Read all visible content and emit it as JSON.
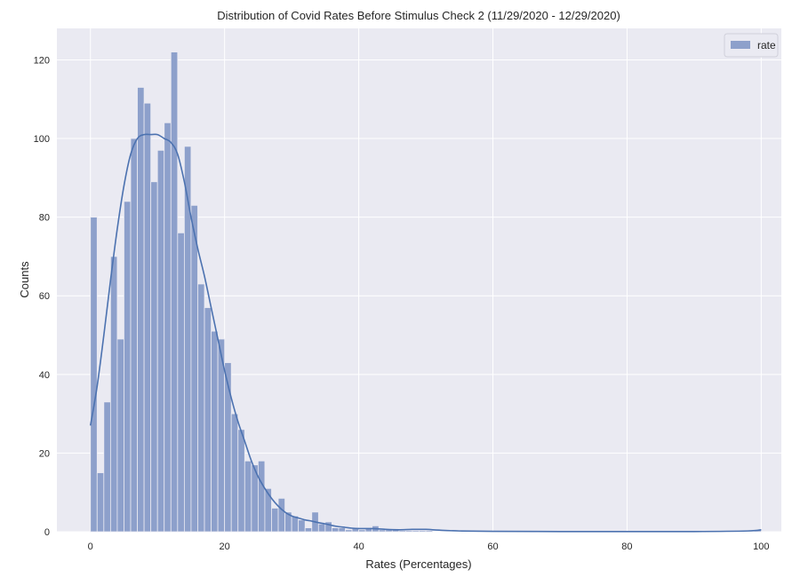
{
  "chart_data": {
    "type": "histogram",
    "title": "Distribution of Covid Rates Before Stimulus Check 2 (11/29/2020 - 12/29/2020)",
    "xlabel": "Rates (Percentages)",
    "ylabel": "Counts",
    "xlim": [
      -5,
      103
    ],
    "ylim": [
      0,
      128
    ],
    "xticks": [
      0,
      20,
      40,
      60,
      80,
      100
    ],
    "yticks": [
      0,
      20,
      40,
      60,
      80,
      100,
      120
    ],
    "grid": true,
    "legend": {
      "placement": "top-right",
      "entries": [
        "rate"
      ]
    },
    "colors": {
      "bar": "#8da0cb",
      "line": "#4c72b0",
      "background": "#eaeaf2",
      "grid": "#ffffff"
    },
    "bin_width": 1,
    "bin_start": 0,
    "series": [
      {
        "name": "rate",
        "counts": [
          80,
          15,
          33,
          70,
          49,
          84,
          100,
          113,
          109,
          89,
          97,
          104,
          122,
          76,
          98,
          83,
          63,
          57,
          51,
          49,
          43,
          30,
          26,
          18,
          17,
          18,
          11,
          6,
          8.5,
          5,
          4,
          3,
          1,
          5,
          2,
          2.5,
          1,
          1,
          0.5,
          1,
          0.5,
          1,
          1.5,
          0.5,
          0.5,
          0.5,
          0.3,
          0.3,
          0.3,
          0.3,
          0.3,
          0,
          0,
          0,
          0,
          0,
          0,
          0,
          0,
          0,
          0,
          0,
          0,
          0,
          0,
          0,
          0,
          0,
          0,
          0,
          0,
          0,
          0,
          0,
          0,
          0,
          0,
          0,
          0,
          0,
          0,
          0,
          0,
          0,
          0,
          0,
          0,
          0,
          0,
          0,
          0,
          0,
          0,
          0,
          0,
          0,
          0,
          0,
          0,
          0.5
        ],
        "kde": [
          [
            0,
            27
          ],
          [
            1,
            37
          ],
          [
            2,
            50
          ],
          [
            3,
            64
          ],
          [
            4,
            77
          ],
          [
            5,
            88
          ],
          [
            6,
            96
          ],
          [
            7,
            100
          ],
          [
            8,
            101
          ],
          [
            9,
            101
          ],
          [
            10,
            101
          ],
          [
            11,
            100
          ],
          [
            12,
            99
          ],
          [
            13,
            96
          ],
          [
            14,
            89
          ],
          [
            15,
            80
          ],
          [
            16,
            72
          ],
          [
            17,
            65
          ],
          [
            18,
            57
          ],
          [
            19,
            49
          ],
          [
            20,
            41
          ],
          [
            21,
            34
          ],
          [
            22,
            28
          ],
          [
            23,
            23
          ],
          [
            24,
            18
          ],
          [
            25,
            14
          ],
          [
            26,
            11
          ],
          [
            27,
            8.5
          ],
          [
            28,
            6.5
          ],
          [
            29,
            5
          ],
          [
            30,
            4
          ],
          [
            31,
            3.5
          ],
          [
            32,
            3
          ],
          [
            33,
            2.7
          ],
          [
            34,
            2.3
          ],
          [
            35,
            2
          ],
          [
            36,
            1.6
          ],
          [
            37,
            1.3
          ],
          [
            38,
            1.1
          ],
          [
            39,
            0.9
          ],
          [
            40,
            0.8
          ],
          [
            41,
            0.8
          ],
          [
            42,
            0.8
          ],
          [
            44,
            0.6
          ],
          [
            46,
            0.5
          ],
          [
            48,
            0.6
          ],
          [
            50,
            0.6
          ],
          [
            52,
            0.4
          ],
          [
            55,
            0.2
          ],
          [
            60,
            0.1
          ],
          [
            70,
            0.05
          ],
          [
            80,
            0.05
          ],
          [
            90,
            0.05
          ],
          [
            98,
            0.2
          ],
          [
            100,
            0.5
          ]
        ]
      }
    ]
  }
}
